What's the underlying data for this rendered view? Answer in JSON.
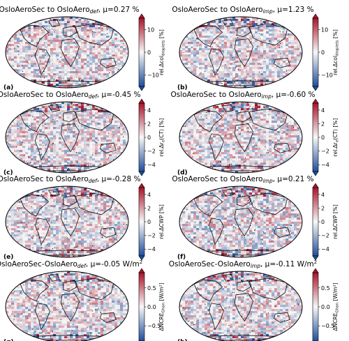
{
  "panels": [
    {
      "letter": "(a)",
      "title": "OsloAeroSec to OsloAero",
      "sub": "def",
      "mu": ", μ=0.27 %",
      "unit": "",
      "cbar": "c1",
      "seed": 11
    },
    {
      "letter": "(b)",
      "title": "OsloAeroSec to OsloAero",
      "sub": "imp",
      "mu": ", μ=1.23 %",
      "unit": "",
      "cbar": "c1",
      "seed": 23
    },
    {
      "letter": "(c)",
      "title": "OsloAeroSec to OsloAero",
      "sub": "def",
      "mu": ", μ=-0.45 %",
      "unit": "",
      "cbar": "c2",
      "seed": 37
    },
    {
      "letter": "(d)",
      "title": "OsloAeroSec to OsloAero",
      "sub": "imp",
      "mu": ", μ=-0.60 %",
      "unit": "",
      "cbar": "c2",
      "seed": 41
    },
    {
      "letter": "(e)",
      "title": "OsloAeroSec to OsloAero",
      "sub": "def",
      "mu": ", μ=-0.28 %",
      "unit": "",
      "cbar": "c3",
      "seed": 53
    },
    {
      "letter": "(f)",
      "title": "OsloAeroSec to OsloAero",
      "sub": "imp",
      "mu": ", μ=0.21 %",
      "unit": "",
      "cbar": "c3",
      "seed": 67
    },
    {
      "letter": "(g)",
      "title": "OsloAeroSec-OsloAero",
      "sub": "def",
      "mu": ", μ=-0.05 W/m",
      "unit": "2",
      "cbar": "c4",
      "seed": 71
    },
    {
      "letter": "(h)",
      "title": "OsloAeroSec-OsloAero",
      "sub": "imp",
      "mu": ", μ=-0.11 W/m",
      "unit": "2",
      "cbar": "c4",
      "seed": 89
    }
  ],
  "colorbars": {
    "c1": {
      "ticks": [
        "10",
        "0",
        "−10"
      ],
      "range": [
        -15,
        15
      ],
      "tick_values": [
        10,
        0,
        -10
      ],
      "label_main": "rel.Δcol",
      "label_sub": "droplets",
      "label_tail": " [%]"
    },
    "c2": {
      "ticks": [
        "4",
        "2",
        "0",
        "−2",
        "−4"
      ],
      "range": [
        -5,
        5
      ],
      "tick_values": [
        4,
        2,
        0,
        -2,
        -4
      ],
      "label_main": "rel.Δr",
      "label_sub": "e",
      "label_tail": "(CT) [%]"
    },
    "c3": {
      "ticks": [
        "4",
        "2",
        "0",
        "−2",
        "−4"
      ],
      "range": [
        -5,
        5
      ],
      "tick_values": [
        4,
        2,
        0,
        -2,
        -4
      ],
      "label_main": "rel.ΔCWP [%]",
      "label_sub": "",
      "label_tail": ""
    },
    "c4": {
      "ticks": [
        "0.5",
        "0.0",
        "−0.5"
      ],
      "range": [
        -0.9,
        0.9
      ],
      "tick_values": [
        0.5,
        0.0,
        -0.5
      ],
      "label_main": "ΔNCRE",
      "label_sub": "Ghan",
      "label_tail": " [W/m²]"
    }
  },
  "colors": {
    "blue": "#1f4e9c",
    "white": "#f7f7f7",
    "red": "#a8142b"
  }
}
